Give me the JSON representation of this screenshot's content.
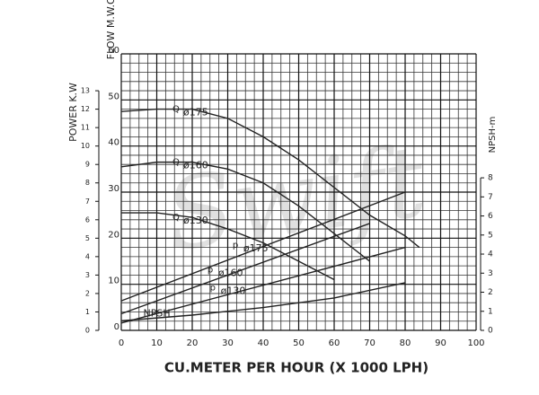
{
  "chart_data": {
    "type": "line",
    "x_label": "CU.METER PER HOUR (X 1000 LPH)",
    "y_label": "FLOW M.W.C.",
    "y2_label": "POWER K.W",
    "y3_label": "NPSH-m",
    "watermark": "Swift",
    "xlim": [
      0,
      100
    ],
    "xticks": [
      0,
      10,
      20,
      30,
      40,
      50,
      60,
      70,
      80,
      90,
      100
    ],
    "ylim": [
      0,
      60
    ],
    "yticks": [
      0,
      10,
      20,
      30,
      40,
      50,
      60
    ],
    "y2lim": [
      0,
      15
    ],
    "y2ticks": [
      0,
      1,
      2,
      3,
      4,
      5,
      6,
      7,
      8,
      9,
      10,
      11,
      12,
      13
    ],
    "y3lim": [
      0,
      14.5
    ],
    "y3ticks": [
      0,
      1,
      2,
      3,
      4,
      5,
      6,
      7,
      8
    ],
    "grid": true,
    "color": "#222222",
    "series": [
      {
        "marker": "Q",
        "name": "ø175",
        "x": [
          0,
          10,
          20,
          30,
          40,
          50,
          60,
          70,
          80,
          84
        ],
        "values": [
          47.5,
          48,
          48,
          46,
          42,
          37,
          31,
          25,
          20.5,
          18
        ]
      },
      {
        "marker": "Q",
        "name": "ø160",
        "x": [
          0,
          10,
          20,
          30,
          40,
          50,
          60,
          70
        ],
        "values": [
          35.5,
          36.5,
          36.5,
          35,
          32,
          27,
          21,
          15
        ]
      },
      {
        "marker": "Q",
        "name": "ø130",
        "x": [
          0,
          10,
          20,
          30,
          40,
          50,
          60
        ],
        "values": [
          25.5,
          25.5,
          24.5,
          22,
          19,
          15,
          11
        ]
      },
      {
        "marker": "p",
        "name": "ø175",
        "axis": "y2",
        "x": [
          0,
          80
        ],
        "values": [
          1.6,
          7.5
        ]
      },
      {
        "marker": "p",
        "name": "ø160",
        "axis": "y2",
        "x": [
          0,
          70
        ],
        "values": [
          0.9,
          5.8
        ]
      },
      {
        "marker": "p",
        "name": "ø130",
        "axis": "y2",
        "x": [
          0,
          80
        ],
        "values": [
          0.4,
          4.5
        ]
      },
      {
        "name": "NPSH",
        "axis": "y3",
        "x": [
          0,
          20,
          40,
          60,
          80
        ],
        "values": [
          0.5,
          0.8,
          1.2,
          1.7,
          2.5
        ]
      }
    ]
  }
}
